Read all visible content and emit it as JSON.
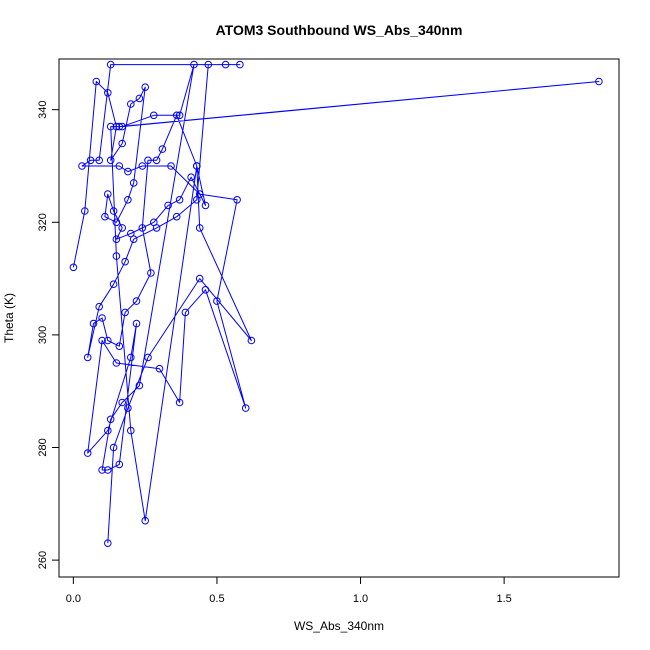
{
  "chart_data": {
    "type": "line",
    "title": "ATOM3 Southbound WS_Abs_340nm",
    "xlabel": "WS_Abs_340nm",
    "ylabel": "Theta (K)",
    "xlim": [
      -0.05,
      1.9
    ],
    "ylim": [
      257,
      349
    ],
    "xticks": [
      0.0,
      0.5,
      1.0,
      1.5
    ],
    "xtick_labels": [
      "0.0",
      "0.5",
      "1.0",
      "1.5"
    ],
    "yticks": [
      260,
      280,
      300,
      320,
      340
    ],
    "ytick_labels": [
      "260",
      "280",
      "300",
      "320",
      "340"
    ],
    "grid": false,
    "series_color": "#0000ff",
    "series": [
      {
        "markers": "open-circle",
        "x": [
          0.0,
          0.04,
          0.08,
          0.12,
          0.15,
          0.13,
          0.17,
          0.2,
          0.23,
          0.25,
          0.21,
          0.19,
          0.15,
          0.11,
          0.12,
          0.14,
          0.17,
          0.15,
          0.2,
          0.28,
          0.33,
          0.37,
          0.41,
          0.46,
          0.43,
          0.36,
          0.31,
          0.29,
          0.26,
          0.24,
          0.27,
          0.22,
          0.18,
          0.16,
          0.12,
          0.1,
          0.07,
          0.05,
          0.09,
          0.14,
          0.18,
          0.21,
          0.29,
          0.36,
          0.43,
          0.47,
          0.53,
          0.58,
          0.13,
          0.09,
          0.06,
          0.03,
          0.16,
          0.19,
          0.24,
          0.34,
          0.44,
          0.57,
          0.5,
          0.6,
          0.46,
          0.39,
          0.37,
          0.3,
          0.15,
          0.1,
          0.05,
          0.12,
          0.2,
          0.22,
          0.16,
          0.12,
          0.1,
          0.13,
          0.17,
          0.23,
          0.42,
          0.37,
          0.28,
          0.17,
          1.83,
          0.16,
          0.13,
          0.15,
          0.2,
          0.25,
          0.43,
          0.44,
          0.62,
          0.44,
          0.26,
          0.19,
          0.14,
          0.12
        ],
        "y": [
          312,
          322,
          345,
          343,
          337,
          331,
          334,
          341,
          342,
          344,
          327,
          324,
          320,
          321,
          325,
          322,
          319,
          317,
          318,
          320,
          323,
          324,
          328,
          323,
          330,
          339,
          333,
          331,
          331,
          319,
          311,
          306,
          304,
          298,
          299,
          303,
          302,
          296,
          305,
          309,
          313,
          317,
          319,
          321,
          324,
          348,
          348,
          348,
          348,
          331,
          331,
          330,
          330,
          329,
          330,
          330,
          325,
          324,
          306,
          287,
          308,
          304,
          288,
          294,
          295,
          299,
          279,
          283,
          296,
          302,
          277,
          276,
          276,
          285,
          288,
          291,
          348,
          339,
          339,
          337,
          345,
          337,
          337,
          314,
          283,
          267,
          330,
          319,
          299,
          310,
          296,
          287,
          280,
          263
        ]
      }
    ]
  }
}
